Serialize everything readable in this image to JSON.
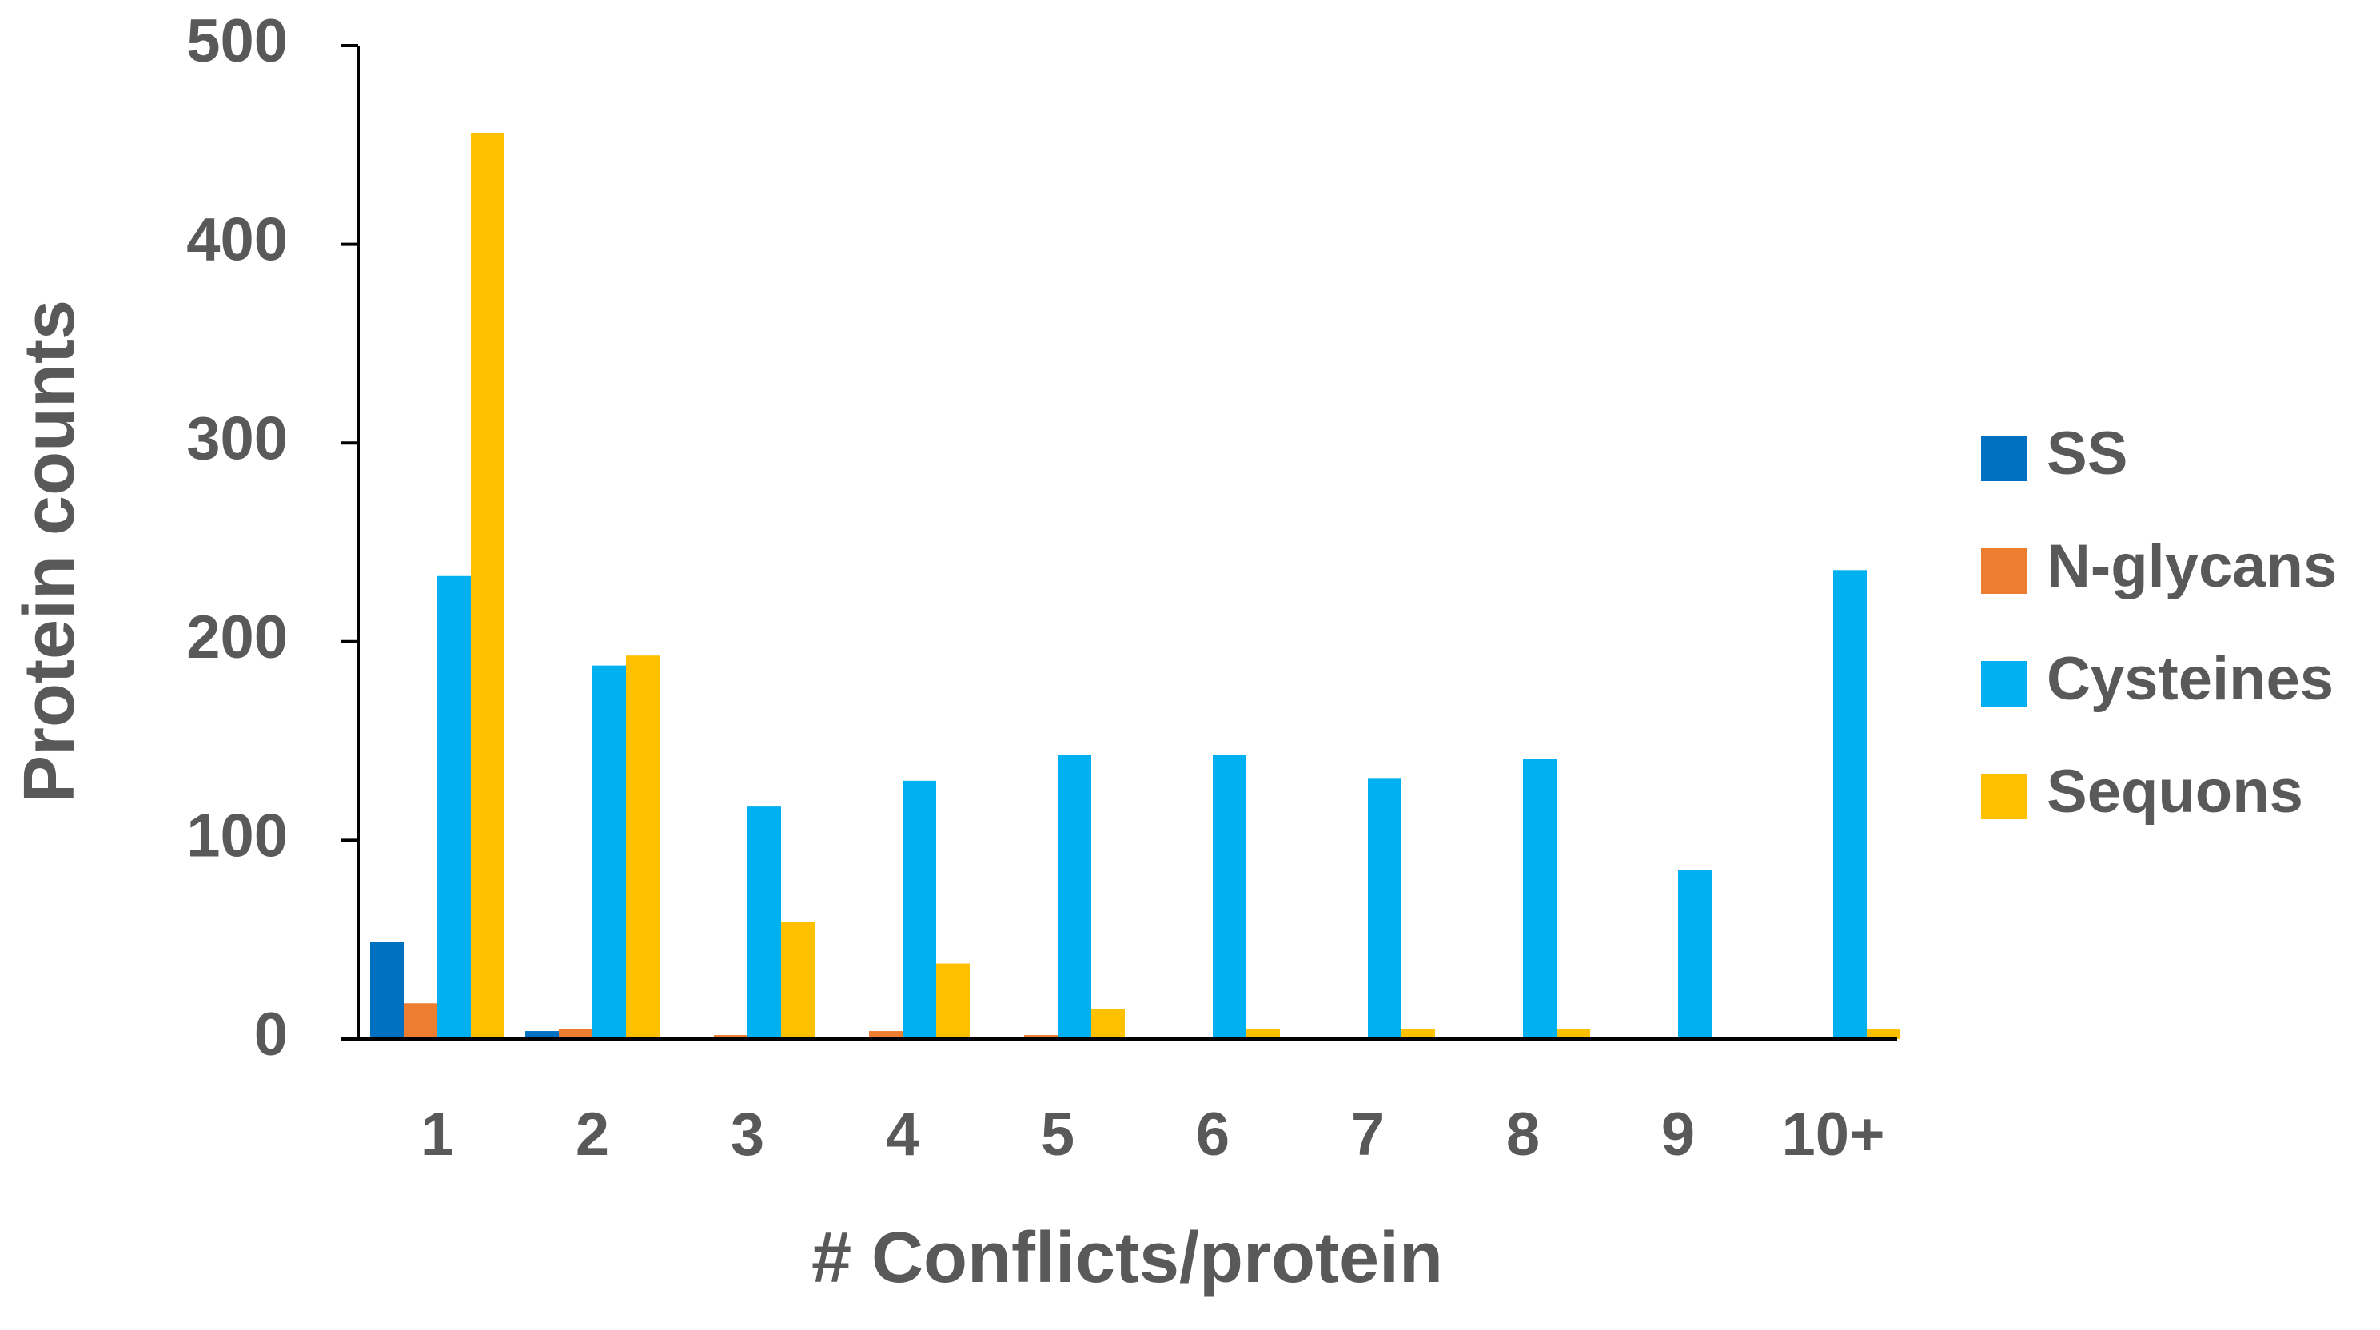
{
  "chart_data": {
    "type": "bar",
    "x_label": "# Conflicts/protein",
    "y_label": "Protein counts",
    "categories": [
      "1",
      "2",
      "3",
      "4",
      "5",
      "6",
      "7",
      "8",
      "9",
      "10+"
    ],
    "series": [
      {
        "name": "SS",
        "color": "#0070c0",
        "values": [
          49,
          4,
          0,
          0,
          0,
          0,
          0,
          0,
          0,
          0
        ]
      },
      {
        "name": "N-glycans",
        "color": "#ed7d31",
        "values": [
          18,
          5,
          2,
          4,
          2,
          0,
          0,
          0,
          0,
          0
        ]
      },
      {
        "name": "Cysteines",
        "color": "#00b0f0",
        "values": [
          233,
          188,
          117,
          130,
          143,
          143,
          131,
          141,
          85,
          236
        ]
      },
      {
        "name": "Sequons",
        "color": "#ffc000",
        "values": [
          456,
          193,
          59,
          38,
          15,
          5,
          5,
          5,
          0,
          5
        ]
      }
    ],
    "ylim": [
      0,
      500
    ],
    "yticks": [
      0,
      100,
      200,
      300,
      400,
      500
    ],
    "legend": "right"
  }
}
